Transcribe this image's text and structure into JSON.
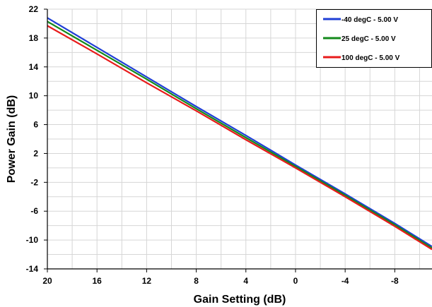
{
  "chart_data": {
    "type": "line",
    "title": "",
    "xlabel": "Gain Setting (dB)",
    "ylabel": "Power Gain (dB)",
    "xlim": [
      20,
      -11
    ],
    "ylim": [
      -14,
      22
    ],
    "x_reversed": true,
    "xticks": [
      20,
      16,
      12,
      8,
      4,
      0,
      -4,
      -8
    ],
    "xtick_labels": [
      "20",
      "16",
      "12",
      "8",
      "4",
      "0",
      "-4",
      "-8"
    ],
    "yticks": [
      22,
      18,
      14,
      10,
      6,
      2,
      -2,
      -6,
      -10,
      -14
    ],
    "ytick_labels": [
      "22",
      "18",
      "14",
      "10",
      "6",
      "2",
      "-2",
      "-6",
      "-10",
      "-14"
    ],
    "grid": true,
    "legend_position": "top-right",
    "series": [
      {
        "name": "-40 degC - 5.00 V",
        "color": "#1f3fd6",
        "x": [
          20,
          16,
          12,
          8,
          4,
          0,
          -4,
          -8,
          -11
        ],
        "y": [
          20.8,
          16.7,
          12.6,
          8.5,
          4.5,
          0.4,
          -3.6,
          -7.7,
          -10.9
        ]
      },
      {
        "name": "25 degC - 5.00 V",
        "color": "#13891b",
        "x": [
          20,
          16,
          12,
          8,
          4,
          0,
          -4,
          -8,
          -11
        ],
        "y": [
          20.3,
          16.3,
          12.3,
          8.2,
          4.2,
          0.2,
          -3.8,
          -7.9,
          -11.1
        ]
      },
      {
        "name": "100 degC - 5.00 V",
        "color": "#e81b1b",
        "x": [
          20,
          16,
          12,
          8,
          4,
          0,
          -4,
          -8,
          -11
        ],
        "y": [
          19.7,
          15.8,
          11.8,
          7.9,
          3.9,
          0.0,
          -4.0,
          -8.1,
          -11.3
        ]
      }
    ]
  }
}
